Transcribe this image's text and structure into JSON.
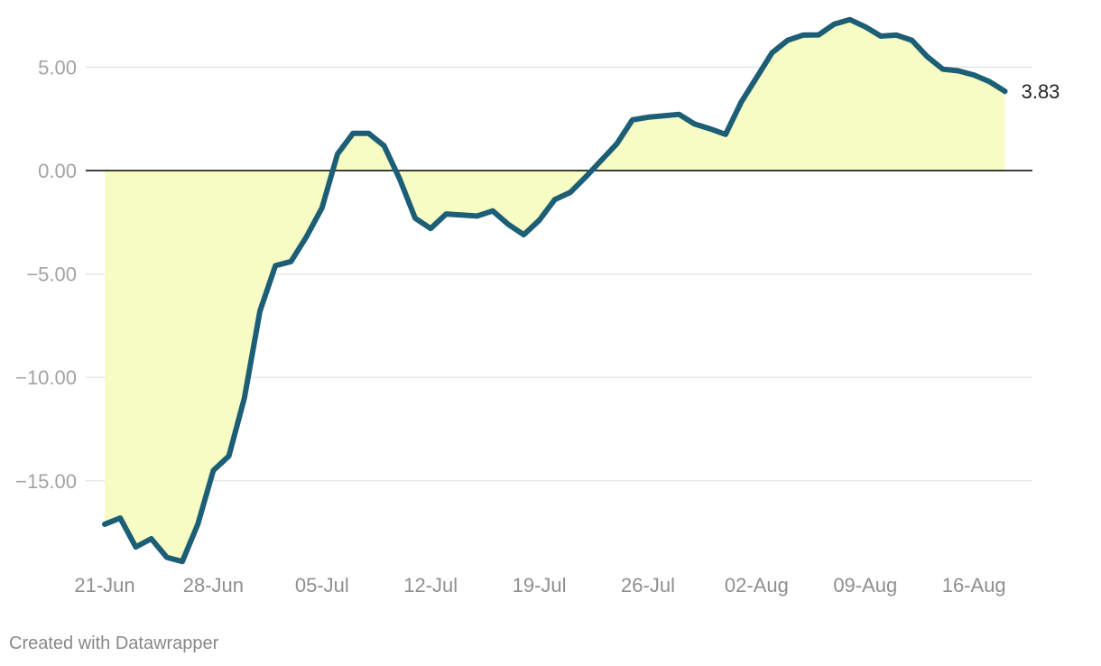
{
  "chart_data": {
    "type": "area",
    "y_ticks": [
      5,
      0,
      -5,
      -10,
      -15
    ],
    "y_tick_labels": [
      "5.00",
      "0.00",
      "−5.00",
      "−10.00",
      "−15.00"
    ],
    "ylim": [
      -19,
      8
    ],
    "x_tick_labels": [
      "21-Jun",
      "28-Jun",
      "05-Jul",
      "12-Jul",
      "19-Jul",
      "26-Jul",
      "02-Aug",
      "09-Aug",
      "16-Aug"
    ],
    "x_tick_day_index": [
      0,
      7,
      14,
      21,
      28,
      35,
      42,
      49,
      56
    ],
    "x": [
      "21-Jun",
      "22-Jun",
      "23-Jun",
      "24-Jun",
      "25-Jun",
      "26-Jun",
      "27-Jun",
      "28-Jun",
      "29-Jun",
      "30-Jun",
      "01-Jul",
      "02-Jul",
      "03-Jul",
      "04-Jul",
      "05-Jul",
      "06-Jul",
      "07-Jul",
      "08-Jul",
      "09-Jul",
      "10-Jul",
      "11-Jul",
      "12-Jul",
      "13-Jul",
      "14-Jul",
      "15-Jul",
      "16-Jul",
      "17-Jul",
      "18-Jul",
      "19-Jul",
      "20-Jul",
      "21-Jul",
      "22-Jul",
      "23-Jul",
      "24-Jul",
      "25-Jul",
      "26-Jul",
      "27-Jul",
      "28-Jul",
      "29-Jul",
      "30-Jul",
      "31-Jul",
      "01-Aug",
      "02-Aug",
      "03-Aug",
      "04-Aug",
      "05-Aug",
      "06-Aug",
      "07-Aug",
      "08-Aug",
      "09-Aug",
      "10-Aug",
      "11-Aug",
      "12-Aug",
      "13-Aug",
      "14-Aug",
      "15-Aug",
      "16-Aug",
      "17-Aug",
      "18-Aug"
    ],
    "values": [
      -17.1,
      -16.8,
      -18.2,
      -17.8,
      -18.7,
      -18.9,
      -17.1,
      -14.5,
      -13.8,
      -11.0,
      -6.8,
      -4.6,
      -4.4,
      -3.2,
      -1.8,
      0.8,
      1.8,
      1.8,
      1.2,
      -0.4,
      -2.3,
      -2.8,
      -2.1,
      -2.15,
      -2.2,
      -1.95,
      -2.6,
      -3.1,
      -2.4,
      -1.4,
      -1.05,
      -0.3,
      0.5,
      1.3,
      2.45,
      2.58,
      2.65,
      2.72,
      2.25,
      2.02,
      1.75,
      3.3,
      4.5,
      5.7,
      6.3,
      6.55,
      6.56,
      7.08,
      7.3,
      6.95,
      6.5,
      6.55,
      6.3,
      5.5,
      4.9,
      4.82,
      4.62,
      4.3,
      3.83
    ],
    "end_label": "3.83",
    "line_color": "#1c5e76",
    "fill_color": "#f6fcc4",
    "zero_line_color": "#000000",
    "grid": true
  },
  "footer": {
    "credit": "Created with Datawrapper"
  }
}
